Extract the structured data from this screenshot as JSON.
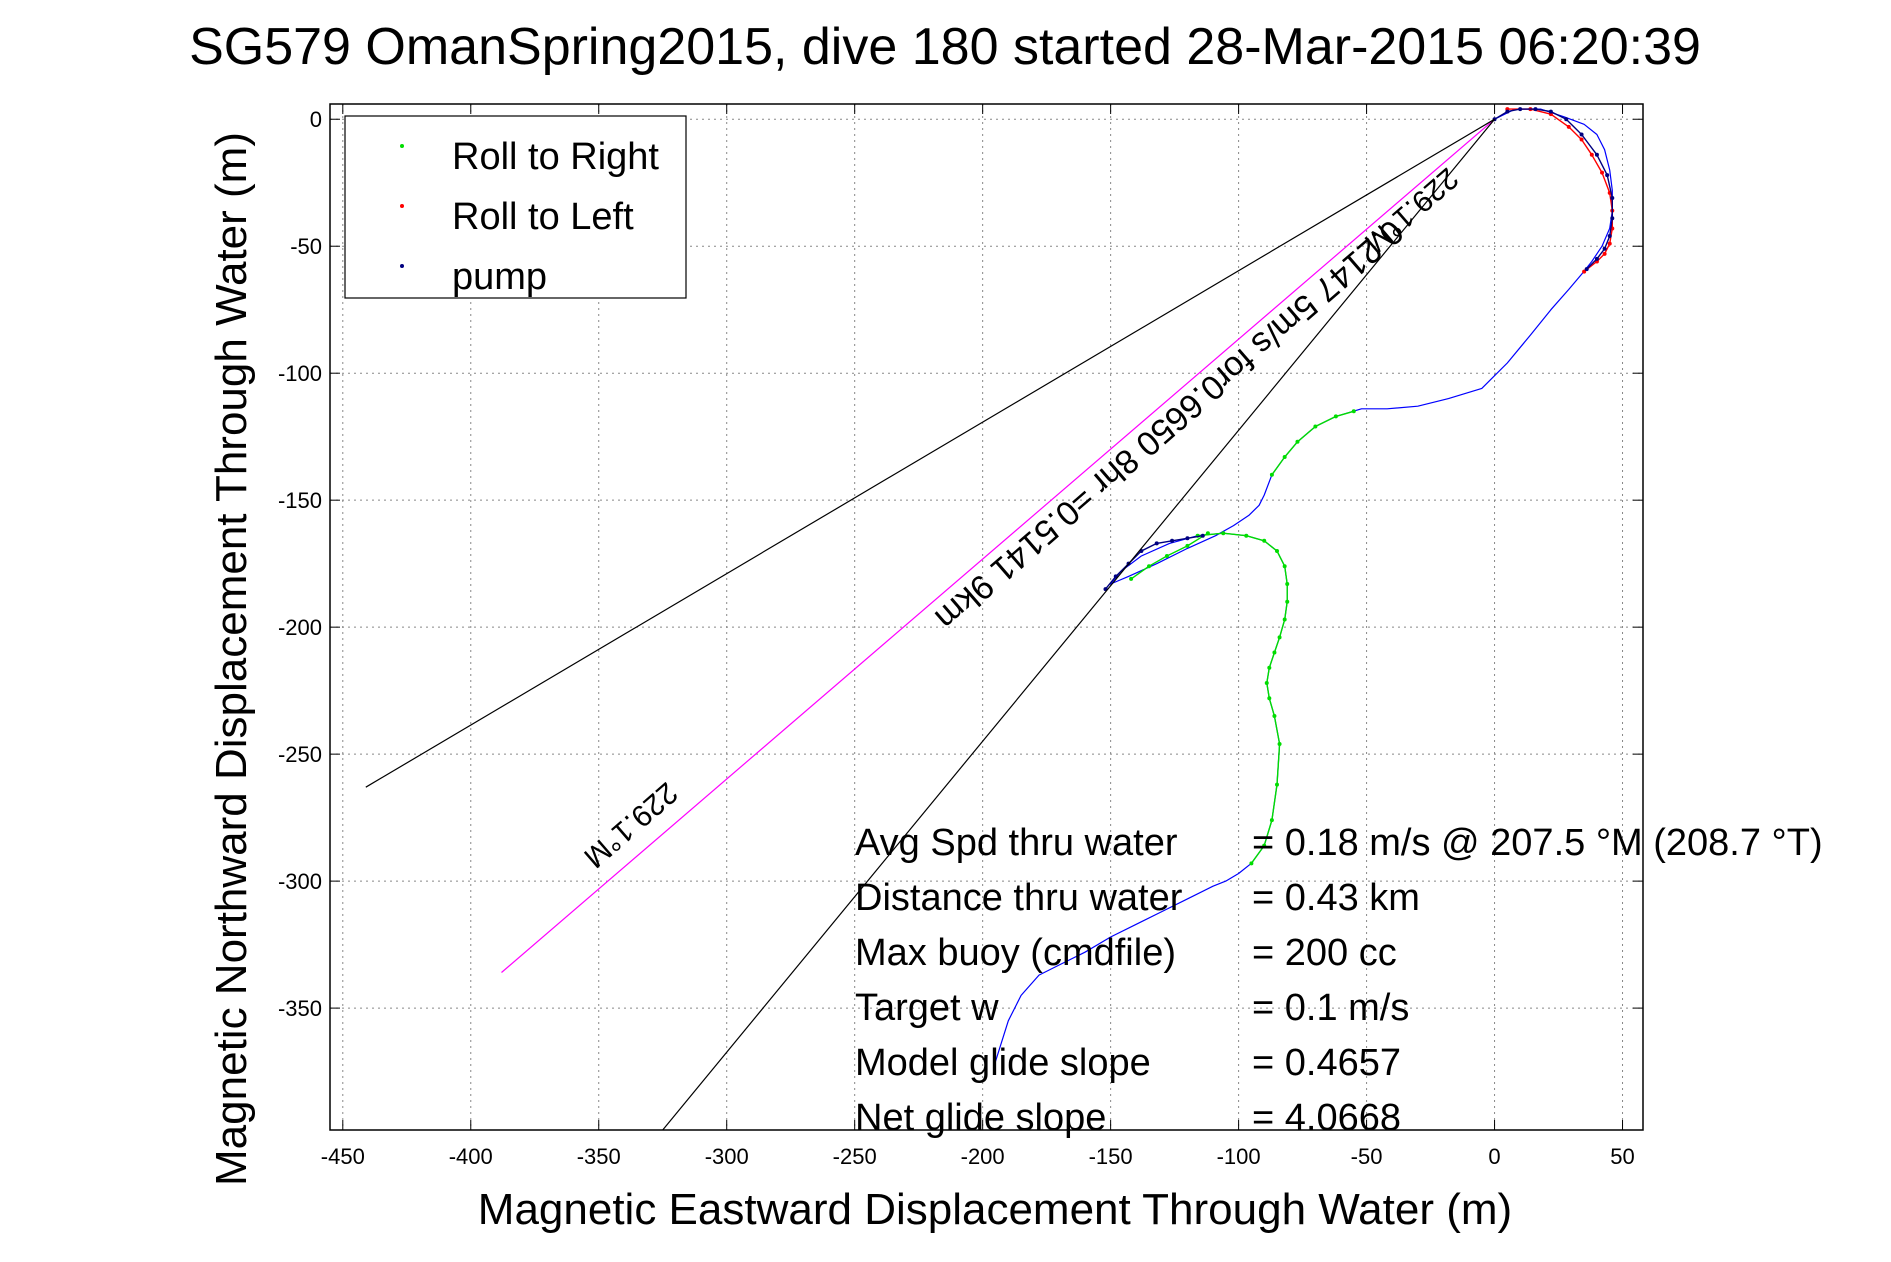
{
  "chart_data": {
    "type": "line",
    "title": "SG579 OmanSpring2015, dive 180 started 28-Mar-2015 06:20:39",
    "xlabel": "Magnetic Eastward Displacement Through Water (m)",
    "ylabel": "Magnetic Northward Displacement Through Water (m)",
    "xlim": [
      -455,
      58
    ],
    "ylim": [
      -398,
      6
    ],
    "xticks": [
      -450,
      -400,
      -350,
      -300,
      -250,
      -200,
      -150,
      -100,
      -50,
      0,
      50
    ],
    "yticks": [
      0,
      -50,
      -100,
      -150,
      -200,
      -250,
      -300,
      -350
    ],
    "grid": true,
    "legend_position": "top-left",
    "legend": [
      {
        "label": "Roll to Right",
        "color": "#00dd00"
      },
      {
        "label": "Roll to Left",
        "color": "#ff0000"
      },
      {
        "label": "pump",
        "color": "#000080"
      }
    ],
    "colors": {
      "track": "#0000ff",
      "roll_right": "#00dd00",
      "roll_left": "#ff0000",
      "pump": "#000080",
      "heading_line": "#ff00ff",
      "cone_lines": "#000000"
    },
    "series": [
      {
        "kind": "track",
        "x": [
          -195,
          -190,
          -185,
          -178,
          -170,
          -160,
          -150,
          -140,
          -130,
          -120,
          -110,
          -105,
          -100,
          -95,
          -90,
          -87,
          -85,
          -84,
          -86,
          -88,
          -89,
          -88,
          -86,
          -84,
          -82,
          -81,
          -81,
          -82,
          -85,
          -90,
          -97,
          -106,
          -116,
          -127,
          -138,
          -146,
          -150,
          -143,
          -132,
          -120,
          -109,
          -102,
          -96,
          -92,
          -90,
          -87,
          -82,
          -77,
          -70,
          -62,
          -52,
          -42,
          -30,
          -18,
          -5,
          5,
          14,
          22,
          29,
          34,
          38,
          42,
          45,
          46,
          46,
          45,
          43,
          40,
          35,
          27,
          18,
          8,
          0
        ],
        "y": [
          -371,
          -355,
          -345,
          -337,
          -333,
          -328,
          -322,
          -317,
          -312,
          -307,
          -302,
          -300,
          -297,
          -293,
          -286,
          -276,
          -262,
          -246,
          -235,
          -228,
          -222,
          -216,
          -210,
          -204,
          -197,
          -190,
          -183,
          -176,
          -170,
          -166,
          -164,
          -163,
          -164,
          -167,
          -172,
          -178,
          -183,
          -180,
          -175,
          -169,
          -164,
          -160,
          -156,
          -152,
          -148,
          -140,
          -133,
          -127,
          -121,
          -117,
          -114,
          -114,
          -113,
          -110,
          -106,
          -96,
          -85,
          -75,
          -67,
          -61,
          -56,
          -50,
          -43,
          -36,
          -28,
          -20,
          -12,
          -6,
          -2,
          1,
          4,
          4,
          0
        ]
      },
      {
        "kind": "roll_right",
        "segments": [
          {
            "x": [
              -95,
              -90,
              -87,
              -85,
              -84,
              -86,
              -88,
              -89,
              -88,
              -86,
              -84,
              -82,
              -81,
              -81,
              -82,
              -85,
              -90,
              -97,
              -106,
              -116
            ],
            "y": [
              -293,
              -286,
              -276,
              -262,
              -246,
              -235,
              -228,
              -222,
              -216,
              -210,
              -204,
              -197,
              -190,
              -183,
              -176,
              -170,
              -166,
              -164,
              -163,
              -164
            ]
          },
          {
            "x": [
              -112,
              -120,
              -128,
              -135,
              -142
            ],
            "y": [
              -163,
              -168,
              -172,
              -176,
              -181
            ]
          },
          {
            "x": [
              -87,
              -82,
              -77,
              -70,
              -62,
              -55
            ],
            "y": [
              -140,
              -133,
              -127,
              -121,
              -117,
              -115
            ]
          }
        ]
      },
      {
        "kind": "roll_left",
        "segments": [
          {
            "x": [
              5,
              14,
              22,
              29,
              34,
              38,
              42,
              45,
              46,
              46,
              45,
              43,
              40,
              35
            ],
            "y": [
              4,
              4,
              2,
              -3,
              -8,
              -14,
              -21,
              -29,
              -36,
              -43,
              -49,
              -53,
              -56,
              -60
            ]
          }
        ]
      },
      {
        "kind": "pump",
        "segments": [
          {
            "x": [
              -152,
              -148,
              -143,
              -138,
              -132,
              -126,
              -120,
              -114
            ],
            "y": [
              -185,
              -180,
              -175,
              -170,
              -167,
              -166,
              -165,
              -164
            ]
          },
          {
            "x": [
              0,
              5,
              10,
              16,
              22,
              28,
              34,
              40,
              44,
              46,
              46,
              45,
              43,
              40,
              36
            ],
            "y": [
              0,
              3,
              4,
              4,
              3,
              0,
              -6,
              -14,
              -22,
              -31,
              -39,
              -46,
              -51,
              -55,
              -59
            ]
          }
        ]
      },
      {
        "kind": "heading_line",
        "x": [
          0,
          -388
        ],
        "y": [
          0,
          -336
        ]
      },
      {
        "kind": "cone_lines",
        "lines": [
          {
            "x": [
              0,
              -441
            ],
            "y": [
              0,
              -263
            ]
          },
          {
            "x": [
              0,
              -325
            ],
            "y": [
              0,
              -398
            ]
          }
        ]
      }
    ],
    "annotations": [
      {
        "kind": "heading",
        "text": "229.1°M",
        "at": [
          -340,
          -275
        ],
        "angle": 229.1
      },
      {
        "kind": "heading",
        "text": "229.1°M",
        "at": [
          -35,
          -33
        ],
        "angle": 229.1
      },
      {
        "kind": "speed",
        "text": "0.2147 5m/s for0.6650 8hr =0.5141 9km",
        "at": [
          -130,
          -117
        ],
        "angle": 229.1
      }
    ],
    "stats": [
      {
        "label": "Avg Spd thru water",
        "value": "=  0.18 m/s @ 207.5 °M (208.7 °T)"
      },
      {
        "label": "Distance thru water",
        "value": "=  0.43 km"
      },
      {
        "label": "Max buoy (cmdfile)",
        "value": "= 200 cc"
      },
      {
        "label": "Target w",
        "value": "= 0.1 m/s"
      },
      {
        "label": "Model glide slope",
        "value": "= 0.4657"
      },
      {
        "label": "Net glide slope",
        "value": "= 4.0668"
      }
    ]
  }
}
